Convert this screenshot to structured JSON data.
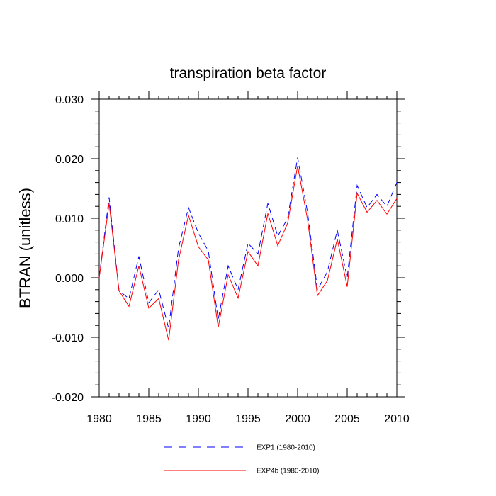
{
  "chart_data": {
    "type": "line",
    "title": "transpiration beta factor",
    "ylabel": "BTRAN  (unitless)",
    "xlabel": "",
    "xlim": [
      1980,
      2010
    ],
    "ylim": [
      -0.02,
      0.03
    ],
    "x_ticks": [
      1980,
      1985,
      1990,
      1995,
      2000,
      2005,
      2010
    ],
    "x_tick_labels": [
      "1980",
      "1985",
      "1990",
      "1995",
      "2000",
      "2005",
      "2010"
    ],
    "y_ticks": [
      -0.02,
      -0.01,
      0.0,
      0.01,
      0.02,
      0.03
    ],
    "y_tick_labels": [
      "-0.020",
      "-0.010",
      "0.000",
      "0.010",
      "0.020",
      "0.030"
    ],
    "grid": false,
    "legend_position": "bottom",
    "x": [
      1980,
      1981,
      1982,
      1983,
      1984,
      1985,
      1986,
      1987,
      1988,
      1989,
      1990,
      1991,
      1992,
      1993,
      1994,
      1995,
      1996,
      1997,
      1998,
      1999,
      2000,
      2001,
      2002,
      2003,
      2004,
      2005,
      2006,
      2007,
      2008,
      2009,
      2010
    ],
    "series": [
      {
        "name": "EXP1 (1980-2010)",
        "color": "#0000ff",
        "style": "dashed",
        "values": [
          0.0,
          0.0135,
          -0.0022,
          -0.0035,
          0.0036,
          -0.0042,
          -0.002,
          -0.0085,
          0.005,
          0.0118,
          0.0075,
          0.0045,
          -0.007,
          0.002,
          -0.002,
          0.0058,
          0.004,
          0.0125,
          0.007,
          0.01,
          0.0202,
          0.011,
          -0.002,
          0.001,
          0.008,
          0.0,
          0.0155,
          0.0118,
          0.014,
          0.012,
          0.016
        ]
      },
      {
        "name": "EXP4b (1980-2010)",
        "color": "#ff0000",
        "style": "solid",
        "values": [
          0.0,
          0.0125,
          -0.0022,
          -0.0048,
          0.002,
          -0.0051,
          -0.0035,
          -0.0105,
          0.003,
          0.0105,
          0.0052,
          0.003,
          -0.0083,
          0.0005,
          -0.0034,
          0.0044,
          0.002,
          0.0108,
          0.0054,
          0.0092,
          0.0188,
          0.0098,
          -0.003,
          -0.0005,
          0.0065,
          -0.0015,
          0.0142,
          0.011,
          0.013,
          0.0107,
          0.0133
        ]
      }
    ]
  }
}
